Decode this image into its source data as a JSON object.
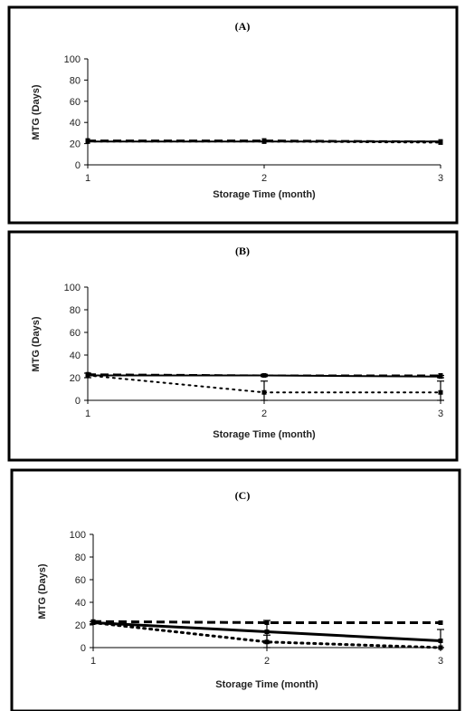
{
  "chart_data": [
    {
      "type": "line",
      "title": "(A)",
      "xlabel": "Storage Time (month)",
      "ylabel": "MTG (Days)",
      "categories": [
        "1",
        "2",
        "3"
      ],
      "x": [
        1,
        2,
        3
      ],
      "ylim": [
        0,
        100
      ],
      "yticks": [
        0,
        20,
        40,
        60,
        80,
        100
      ],
      "grid": false,
      "series": [
        {
          "style": "dashed",
          "values": [
            23,
            23,
            22
          ],
          "err": [
            0,
            0,
            0
          ]
        },
        {
          "style": "solid",
          "values": [
            22,
            22,
            22
          ],
          "err": [
            0,
            0,
            0
          ]
        },
        {
          "style": "dotted",
          "values": [
            22,
            22,
            21
          ],
          "err": [
            0,
            0,
            0
          ]
        }
      ]
    },
    {
      "type": "line",
      "title": "(B)",
      "xlabel": "Storage Time (month)",
      "ylabel": "MTG (Days)",
      "categories": [
        "1",
        "2",
        "3"
      ],
      "x": [
        1,
        2,
        3
      ],
      "ylim": [
        0,
        100
      ],
      "yticks": [
        0,
        20,
        40,
        60,
        80,
        100
      ],
      "grid": false,
      "series": [
        {
          "style": "dashed",
          "values": [
            23,
            22,
            22
          ],
          "err": [
            0,
            0,
            0
          ]
        },
        {
          "style": "solid",
          "values": [
            22,
            22,
            21
          ],
          "err": [
            2,
            1,
            1
          ]
        },
        {
          "style": "dotted",
          "values": [
            22,
            7,
            7
          ],
          "err": [
            0,
            10,
            10
          ]
        }
      ]
    },
    {
      "type": "line",
      "title": "(C)",
      "xlabel": "Storage Time (month)",
      "ylabel": "MTG (Days)",
      "categories": [
        "1",
        "2",
        "3"
      ],
      "x": [
        1,
        2,
        3
      ],
      "ylim": [
        0,
        100
      ],
      "yticks": [
        0,
        20,
        40,
        60,
        80,
        100
      ],
      "grid": false,
      "series": [
        {
          "style": "dashed",
          "values": [
            23,
            22,
            22
          ],
          "err": [
            0,
            0,
            0
          ]
        },
        {
          "style": "solid",
          "values": [
            22,
            14,
            6
          ],
          "err": [
            1,
            10,
            10
          ]
        },
        {
          "style": "dotted",
          "values": [
            22,
            5,
            0
          ],
          "err": [
            0,
            6,
            0
          ]
        }
      ]
    }
  ]
}
